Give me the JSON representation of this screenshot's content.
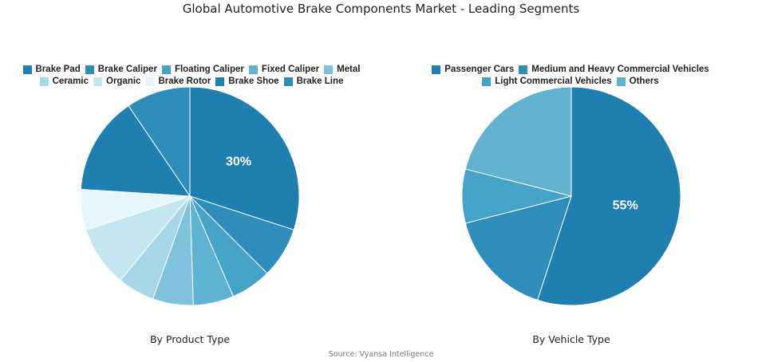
{
  "title": "Global Automotive Brake Components Market - Leading Segments",
  "source": "Source: Vyansa Intelligence",
  "chart_data": [
    {
      "type": "pie",
      "caption": "By Product Type",
      "legend_rows": [
        [
          "Brake Pad",
          "Brake Caliper",
          "Floating Caliper",
          "Fixed Caliper",
          "Metal"
        ],
        [
          "Ceramic",
          "Organic",
          "Brake Rotor",
          "Brake Shoe",
          "Brake Line"
        ]
      ],
      "slices": [
        {
          "label": "Brake Pad",
          "value": 30,
          "color": "#1f7fb0",
          "data_label": "30%"
        },
        {
          "label": "Brake Caliper",
          "value": 7.5,
          "color": "#2f8dbb"
        },
        {
          "label": "Floating Caliper",
          "value": 6,
          "color": "#45a2c8"
        },
        {
          "label": "Fixed Caliper",
          "value": 6,
          "color": "#5eb2d2"
        },
        {
          "label": "Metal",
          "value": 6,
          "color": "#7ec3db"
        },
        {
          "label": "Ceramic",
          "value": 5.5,
          "color": "#a6d8e7"
        },
        {
          "label": "Organic",
          "value": 9,
          "color": "#c3e6ef"
        },
        {
          "label": "Brake Rotor",
          "value": 6,
          "color": "#e6f5f9"
        },
        {
          "label": "Brake Shoe",
          "value": 14.5,
          "color": "#1f7fb0"
        },
        {
          "label": "Brake Line",
          "value": 9.5,
          "color": "#2f8dbb"
        }
      ]
    },
    {
      "type": "pie",
      "caption": "By Vehicle Type",
      "legend_rows": [
        [
          "Passenger Cars",
          "Medium and Heavy Commercial Vehicles"
        ],
        [
          "Light Commercial Vehicles",
          "Others"
        ]
      ],
      "slices": [
        {
          "label": "Passenger Cars",
          "value": 55,
          "color": "#1f7fb0",
          "data_label": "55%"
        },
        {
          "label": "Medium and Heavy Commercial Vehicles",
          "value": 16,
          "color": "#2f8dbb"
        },
        {
          "label": "Light Commercial Vehicles",
          "value": 8,
          "color": "#45a2c8"
        },
        {
          "label": "Others",
          "value": 21,
          "color": "#61b1d1"
        }
      ]
    }
  ]
}
